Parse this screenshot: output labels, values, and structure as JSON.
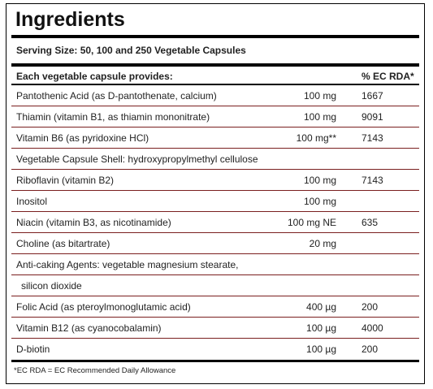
{
  "header": {
    "title": "Ingredients",
    "serving_size": "Serving Size: 50, 100 and 250 Vegetable Capsules"
  },
  "table": {
    "columns": {
      "name": "Each vegetable capsule provides:",
      "rda": "% EC RDA*"
    },
    "rows": [
      {
        "name": "Pantothenic Acid (as D-pantothenate, calcium)",
        "amount": "100 mg",
        "rda": "1667"
      },
      {
        "name": "Thiamin (vitamin B1, as thiamin mononitrate)",
        "amount": "100 mg",
        "rda": "9091"
      },
      {
        "name": "Vitamin B6 (as pyridoxine HCl)",
        "amount": "100 mg**",
        "rda": "7143"
      },
      {
        "name": "Vegetable Capsule Shell: hydroxypropylmethyl cellulose"
      },
      {
        "name": "Riboflavin (vitamin B2)",
        "amount": "100 mg",
        "rda": "7143"
      },
      {
        "name": "Inositol",
        "amount": "100 mg"
      },
      {
        "name": "Niacin (vitamin B3, as nicotinamide)",
        "amount": "100 mg NE",
        "rda": "635"
      },
      {
        "name": "Choline (as bitartrate)",
        "amount": "20 mg"
      },
      {
        "name": "Anti-caking Agents: vegetable magnesium stearate,"
      },
      {
        "name": "silicon dioxide"
      },
      {
        "name": "Folic Acid (as pteroylmonoglutamic acid)",
        "amount": "400 µg",
        "rda": "200"
      },
      {
        "name": "Vitamin B12 (as cyanocobalamin)",
        "amount": "100 µg",
        "rda": "4000"
      },
      {
        "name": "D-biotin",
        "amount": "100 µg",
        "rda": "200"
      }
    ]
  },
  "footnote": "*EC RDA = EC Recommended Daily Allowance"
}
